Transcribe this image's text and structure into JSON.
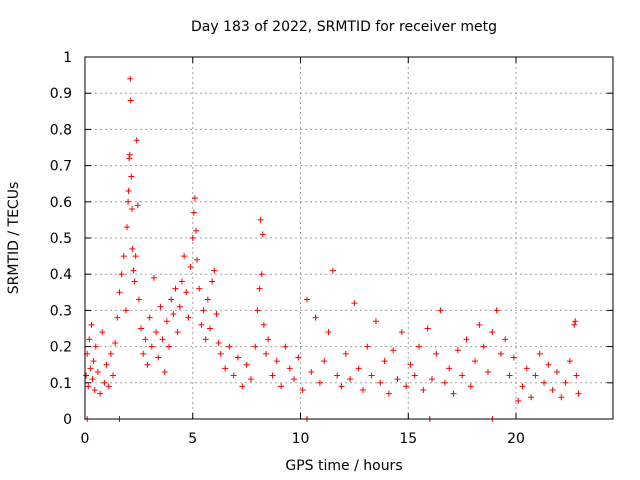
{
  "chart_data": {
    "type": "scatter",
    "title": "Day 183 of 2022, SRMTID for receiver metg",
    "xlabel": "GPS time / hours",
    "ylabel": "SRMTID / TECUs",
    "xlim": [
      0,
      24.5
    ],
    "ylim": [
      0,
      1
    ],
    "x_ticks": [
      0,
      5,
      10,
      15,
      20
    ],
    "x_tick_labels": [
      "0",
      "5",
      "10",
      "15",
      "20"
    ],
    "y_ticks": [
      0,
      0.1,
      0.2,
      0.3,
      0.4,
      0.5,
      0.6,
      0.7,
      0.8,
      0.9,
      1
    ],
    "y_tick_labels": [
      "0",
      "0.1",
      "0.2",
      "0.3",
      "0.4",
      "0.5",
      "0.6",
      "0.7",
      "0.8",
      "0.9",
      "1"
    ],
    "grid": true,
    "marker": "plus",
    "colors": {
      "points": "#ff0000",
      "grid": "#a0a0a0",
      "axes": "#000000"
    },
    "series": [
      {
        "name": "SRMTID",
        "points": [
          [
            0.05,
            0.12
          ],
          [
            0.1,
            0.18
          ],
          [
            0.15,
            0.09
          ],
          [
            0.2,
            0.22
          ],
          [
            0.25,
            0.14
          ],
          [
            0.3,
            0.26
          ],
          [
            0.35,
            0.11
          ],
          [
            0.4,
            0.16
          ],
          [
            0.45,
            0.08
          ],
          [
            0.5,
            0.2
          ],
          [
            0.6,
            0.13
          ],
          [
            0.7,
            0.07
          ],
          [
            0.8,
            0.24
          ],
          [
            0.9,
            0.1
          ],
          [
            1.0,
            0.15
          ],
          [
            1.1,
            0.09
          ],
          [
            1.2,
            0.18
          ],
          [
            1.3,
            0.12
          ],
          [
            1.4,
            0.21
          ],
          [
            1.5,
            0.28
          ],
          [
            1.6,
            0.35
          ],
          [
            1.7,
            0.4
          ],
          [
            1.8,
            0.45
          ],
          [
            1.9,
            0.3
          ],
          [
            1.95,
            0.53
          ],
          [
            2.0,
            0.6
          ],
          [
            2.02,
            0.63
          ],
          [
            2.05,
            0.72
          ],
          [
            2.08,
            0.73
          ],
          [
            2.1,
            0.94
          ],
          [
            2.12,
            0.88
          ],
          [
            2.15,
            0.67
          ],
          [
            2.18,
            0.58
          ],
          [
            2.2,
            0.47
          ],
          [
            2.25,
            0.41
          ],
          [
            2.3,
            0.38
          ],
          [
            2.35,
            0.45
          ],
          [
            2.4,
            0.77
          ],
          [
            2.45,
            0.59
          ],
          [
            2.5,
            0.33
          ],
          [
            2.6,
            0.25
          ],
          [
            2.7,
            0.18
          ],
          [
            2.8,
            0.22
          ],
          [
            2.9,
            0.15
          ],
          [
            3.0,
            0.28
          ],
          [
            3.1,
            0.2
          ],
          [
            3.2,
            0.39
          ],
          [
            3.3,
            0.24
          ],
          [
            3.4,
            0.17
          ],
          [
            3.5,
            0.31
          ],
          [
            3.6,
            0.22
          ],
          [
            3.7,
            0.13
          ],
          [
            3.8,
            0.27
          ],
          [
            3.9,
            0.2
          ],
          [
            4.0,
            0.33
          ],
          [
            4.1,
            0.29
          ],
          [
            4.2,
            0.36
          ],
          [
            4.3,
            0.24
          ],
          [
            4.4,
            0.31
          ],
          [
            4.5,
            0.38
          ],
          [
            4.6,
            0.45
          ],
          [
            4.7,
            0.35
          ],
          [
            4.8,
            0.28
          ],
          [
            4.9,
            0.42
          ],
          [
            5.0,
            0.5
          ],
          [
            5.05,
            0.57
          ],
          [
            5.1,
            0.61
          ],
          [
            5.15,
            0.52
          ],
          [
            5.2,
            0.44
          ],
          [
            5.3,
            0.36
          ],
          [
            5.4,
            0.26
          ],
          [
            5.5,
            0.3
          ],
          [
            5.6,
            0.22
          ],
          [
            5.7,
            0.33
          ],
          [
            5.8,
            0.25
          ],
          [
            5.9,
            0.38
          ],
          [
            6.0,
            0.41
          ],
          [
            6.1,
            0.29
          ],
          [
            6.2,
            0.21
          ],
          [
            6.3,
            0.18
          ],
          [
            6.5,
            0.14
          ],
          [
            6.7,
            0.2
          ],
          [
            6.9,
            0.12
          ],
          [
            7.1,
            0.17
          ],
          [
            7.3,
            0.09
          ],
          [
            7.5,
            0.15
          ],
          [
            7.7,
            0.11
          ],
          [
            7.9,
            0.2
          ],
          [
            8.0,
            0.3
          ],
          [
            8.1,
            0.36
          ],
          [
            8.15,
            0.55
          ],
          [
            8.2,
            0.4
          ],
          [
            8.25,
            0.51
          ],
          [
            8.3,
            0.26
          ],
          [
            8.4,
            0.18
          ],
          [
            8.5,
            0.22
          ],
          [
            8.7,
            0.12
          ],
          [
            8.9,
            0.16
          ],
          [
            9.1,
            0.09
          ],
          [
            9.3,
            0.2
          ],
          [
            9.5,
            0.14
          ],
          [
            9.7,
            0.11
          ],
          [
            9.9,
            0.17
          ],
          [
            10.1,
            0.08
          ],
          [
            10.3,
            0.33
          ],
          [
            10.5,
            0.13
          ],
          [
            10.7,
            0.28
          ],
          [
            10.9,
            0.1
          ],
          [
            11.1,
            0.16
          ],
          [
            11.3,
            0.24
          ],
          [
            11.5,
            0.41
          ],
          [
            11.7,
            0.12
          ],
          [
            11.9,
            0.09
          ],
          [
            12.1,
            0.18
          ],
          [
            12.3,
            0.11
          ],
          [
            12.5,
            0.32
          ],
          [
            12.7,
            0.14
          ],
          [
            12.9,
            0.08
          ],
          [
            13.1,
            0.2
          ],
          [
            13.3,
            0.12
          ],
          [
            13.5,
            0.27
          ],
          [
            13.7,
            0.1
          ],
          [
            13.9,
            0.16
          ],
          [
            14.1,
            0.07
          ],
          [
            14.3,
            0.19
          ],
          [
            14.5,
            0.11
          ],
          [
            14.7,
            0.24
          ],
          [
            14.9,
            0.09
          ],
          [
            15.1,
            0.15
          ],
          [
            15.3,
            0.12
          ],
          [
            15.5,
            0.2
          ],
          [
            15.7,
            0.08
          ],
          [
            15.9,
            0.25
          ],
          [
            16.1,
            0.11
          ],
          [
            16.3,
            0.18
          ],
          [
            16.5,
            0.3
          ],
          [
            16.7,
            0.1
          ],
          [
            16.9,
            0.14
          ],
          [
            17.1,
            0.07
          ],
          [
            17.3,
            0.19
          ],
          [
            17.5,
            0.12
          ],
          [
            17.7,
            0.22
          ],
          [
            17.9,
            0.09
          ],
          [
            18.1,
            0.16
          ],
          [
            18.3,
            0.26
          ],
          [
            18.5,
            0.2
          ],
          [
            18.7,
            0.13
          ],
          [
            18.9,
            0.24
          ],
          [
            19.1,
            0.3
          ],
          [
            19.3,
            0.18
          ],
          [
            19.5,
            0.22
          ],
          [
            19.7,
            0.12
          ],
          [
            19.9,
            0.17
          ],
          [
            20.1,
            0.05
          ],
          [
            20.3,
            0.09
          ],
          [
            20.5,
            0.14
          ],
          [
            20.7,
            0.06
          ],
          [
            20.9,
            0.12
          ],
          [
            21.1,
            0.18
          ],
          [
            21.3,
            0.1
          ],
          [
            21.5,
            0.15
          ],
          [
            21.7,
            0.08
          ],
          [
            21.9,
            0.13
          ],
          [
            22.1,
            0.06
          ],
          [
            22.3,
            0.1
          ],
          [
            22.5,
            0.16
          ],
          [
            22.7,
            0.26
          ],
          [
            22.75,
            0.27
          ],
          [
            22.8,
            0.12
          ],
          [
            22.9,
            0.07
          ],
          [
            0.1,
            0.0
          ],
          [
            1.6,
            0.0
          ],
          [
            10.3,
            0.0
          ],
          [
            16.0,
            0.0
          ],
          [
            18.9,
            0.0
          ]
        ]
      }
    ]
  }
}
